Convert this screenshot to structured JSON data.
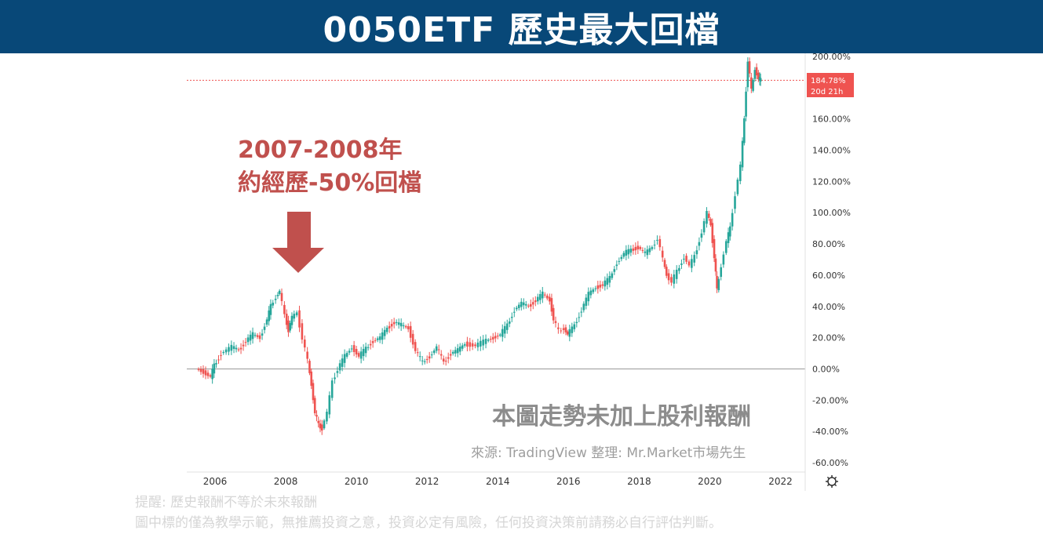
{
  "header": {
    "title": "0050ETF 歷史最大回檔"
  },
  "annotations": {
    "drawdown_line1": "2007-2008年",
    "drawdown_line2": "約經歷-50%回檔",
    "no_dividend_note": "本圖走勢未加上股利報酬",
    "source": "來源: TradingView 整理: Mr.Market市場先生"
  },
  "disclaimer": {
    "line1": "提醒: 歷史報酬不等於未來報酬",
    "line2": "圖中標的僅為教學示範，無推薦投資之意，投資必定有風險，任何投資決策前請務必自行評估判斷。"
  },
  "colors": {
    "header_bg": "#084878",
    "annotation_red": "#c0504d",
    "up_candle": "#26a69a",
    "down_candle": "#ef5350",
    "price_tag": "#ef5350"
  },
  "price_tag": {
    "value": "184.78%",
    "countdown": "20d 21h"
  },
  "settings_icon": "gear-icon",
  "chart_data": {
    "type": "line",
    "title": "0050ETF 歷史最大回檔",
    "xlabel": "",
    "ylabel": "",
    "x_ticks": [
      "2006",
      "2008",
      "2010",
      "2012",
      "2014",
      "2016",
      "2018",
      "2020",
      "2022"
    ],
    "y_ticks": [
      "200.00%",
      "160.00%",
      "140.00%",
      "120.00%",
      "100.00%",
      "80.00%",
      "60.00%",
      "40.00%",
      "20.00%",
      "0.00%",
      "-20.00%",
      "-40.00%",
      "-60.00%"
    ],
    "ylim": [
      -60,
      200
    ],
    "xlim": [
      2005.2,
      2022.7
    ],
    "last_value": 184.78,
    "series": [
      {
        "values": [
          [
            2005.5,
            0
          ],
          [
            2005.7,
            -2
          ],
          [
            2005.9,
            -5
          ],
          [
            2006.0,
            2
          ],
          [
            2006.2,
            10
          ],
          [
            2006.5,
            14
          ],
          [
            2006.7,
            12
          ],
          [
            2006.9,
            18
          ],
          [
            2007.1,
            22
          ],
          [
            2007.3,
            20
          ],
          [
            2007.5,
            32
          ],
          [
            2007.6,
            40
          ],
          [
            2007.75,
            46
          ],
          [
            2007.85,
            50
          ],
          [
            2008.0,
            34
          ],
          [
            2008.1,
            25
          ],
          [
            2008.2,
            33
          ],
          [
            2008.35,
            36
          ],
          [
            2008.5,
            20
          ],
          [
            2008.65,
            5
          ],
          [
            2008.75,
            -10
          ],
          [
            2008.85,
            -28
          ],
          [
            2008.95,
            -36
          ],
          [
            2009.05,
            -38
          ],
          [
            2009.2,
            -28
          ],
          [
            2009.35,
            -8
          ],
          [
            2009.5,
            0
          ],
          [
            2009.7,
            8
          ],
          [
            2009.9,
            14
          ],
          [
            2010.1,
            8
          ],
          [
            2010.3,
            13
          ],
          [
            2010.5,
            18
          ],
          [
            2010.7,
            20
          ],
          [
            2010.9,
            26
          ],
          [
            2011.1,
            30
          ],
          [
            2011.3,
            28
          ],
          [
            2011.5,
            26
          ],
          [
            2011.7,
            12
          ],
          [
            2011.9,
            4
          ],
          [
            2012.1,
            8
          ],
          [
            2012.3,
            14
          ],
          [
            2012.5,
            4
          ],
          [
            2012.7,
            10
          ],
          [
            2012.9,
            12
          ],
          [
            2013.1,
            16
          ],
          [
            2013.4,
            15
          ],
          [
            2013.7,
            18
          ],
          [
            2013.9,
            20
          ],
          [
            2014.1,
            22
          ],
          [
            2014.3,
            28
          ],
          [
            2014.5,
            38
          ],
          [
            2014.7,
            42
          ],
          [
            2014.9,
            40
          ],
          [
            2015.1,
            44
          ],
          [
            2015.3,
            48
          ],
          [
            2015.5,
            44
          ],
          [
            2015.6,
            32
          ],
          [
            2015.75,
            24
          ],
          [
            2015.9,
            26
          ],
          [
            2016.0,
            22
          ],
          [
            2016.2,
            28
          ],
          [
            2016.4,
            38
          ],
          [
            2016.6,
            48
          ],
          [
            2016.8,
            52
          ],
          [
            2017.0,
            54
          ],
          [
            2017.2,
            58
          ],
          [
            2017.4,
            68
          ],
          [
            2017.6,
            74
          ],
          [
            2017.8,
            76
          ],
          [
            2018.0,
            78
          ],
          [
            2018.2,
            74
          ],
          [
            2018.4,
            78
          ],
          [
            2018.55,
            84
          ],
          [
            2018.7,
            70
          ],
          [
            2018.8,
            60
          ],
          [
            2018.95,
            56
          ],
          [
            2019.1,
            62
          ],
          [
            2019.3,
            72
          ],
          [
            2019.45,
            66
          ],
          [
            2019.6,
            72
          ],
          [
            2019.8,
            88
          ],
          [
            2019.95,
            100
          ],
          [
            2020.05,
            92
          ],
          [
            2020.15,
            72
          ],
          [
            2020.22,
            50
          ],
          [
            2020.35,
            66
          ],
          [
            2020.5,
            82
          ],
          [
            2020.6,
            90
          ],
          [
            2020.75,
            112
          ],
          [
            2020.9,
            130
          ],
          [
            2021.0,
            160
          ],
          [
            2021.1,
            198
          ],
          [
            2021.2,
            178
          ],
          [
            2021.3,
            192
          ],
          [
            2021.4,
            186
          ],
          [
            2021.45,
            184.78
          ]
        ]
      }
    ]
  }
}
